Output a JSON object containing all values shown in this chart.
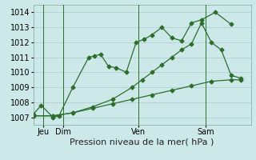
{
  "background_color": "#cce8e8",
  "plot_bg_color": "#cce8e8",
  "grid_color": "#aacccc",
  "line_color": "#2d6e2d",
  "ylim": [
    1006.5,
    1014.5
  ],
  "yticks": [
    1007,
    1008,
    1009,
    1010,
    1011,
    1012,
    1013,
    1014
  ],
  "xlabel": "Pression niveau de la mer( hPa )",
  "xlabel_fontsize": 8,
  "tick_fontsize": 7,
  "series1_x": [
    0,
    0.4,
    1.0,
    1.3,
    2.0,
    2.8,
    3.1,
    3.4,
    3.8,
    4.2,
    4.7,
    5.2,
    5.6,
    6.0,
    6.5,
    7.0,
    7.5,
    8.0,
    8.5,
    9.2,
    10.0
  ],
  "series1_y": [
    1007.2,
    1007.8,
    1007.0,
    1007.1,
    1009.0,
    1011.0,
    1011.1,
    1011.2,
    1010.4,
    1010.3,
    1010.0,
    1012.0,
    1012.2,
    1012.5,
    1013.0,
    1012.3,
    1012.1,
    1013.3,
    1013.5,
    1014.0,
    1013.2
  ],
  "series2_x": [
    0,
    1.0,
    2.0,
    3.0,
    4.0,
    5.0,
    6.0,
    7.0,
    8.0,
    9.0,
    10.0,
    10.5
  ],
  "series2_y": [
    1007.1,
    1007.1,
    1007.3,
    1007.6,
    1007.9,
    1008.2,
    1008.5,
    1008.8,
    1009.1,
    1009.4,
    1009.5,
    1009.5
  ],
  "series3_x": [
    0,
    1.0,
    2.0,
    3.0,
    4.0,
    5.0,
    5.5,
    6.0,
    6.5,
    7.0,
    7.5,
    8.0,
    8.5,
    9.0,
    9.5,
    10.0,
    10.5
  ],
  "series3_y": [
    1007.1,
    1007.1,
    1007.3,
    1007.7,
    1008.2,
    1009.0,
    1009.5,
    1010.0,
    1010.5,
    1011.0,
    1011.5,
    1011.9,
    1013.3,
    1012.0,
    1011.5,
    1009.8,
    1009.6
  ],
  "xtick_positions": [
    0.5,
    1.5,
    5.3,
    8.7
  ],
  "xtick_labels": [
    "Jeu",
    "Dim",
    "Ven",
    "Sam"
  ],
  "vlines_x": [
    0.5,
    1.5,
    5.3,
    8.7
  ],
  "xlim": [
    0,
    11.0
  ]
}
